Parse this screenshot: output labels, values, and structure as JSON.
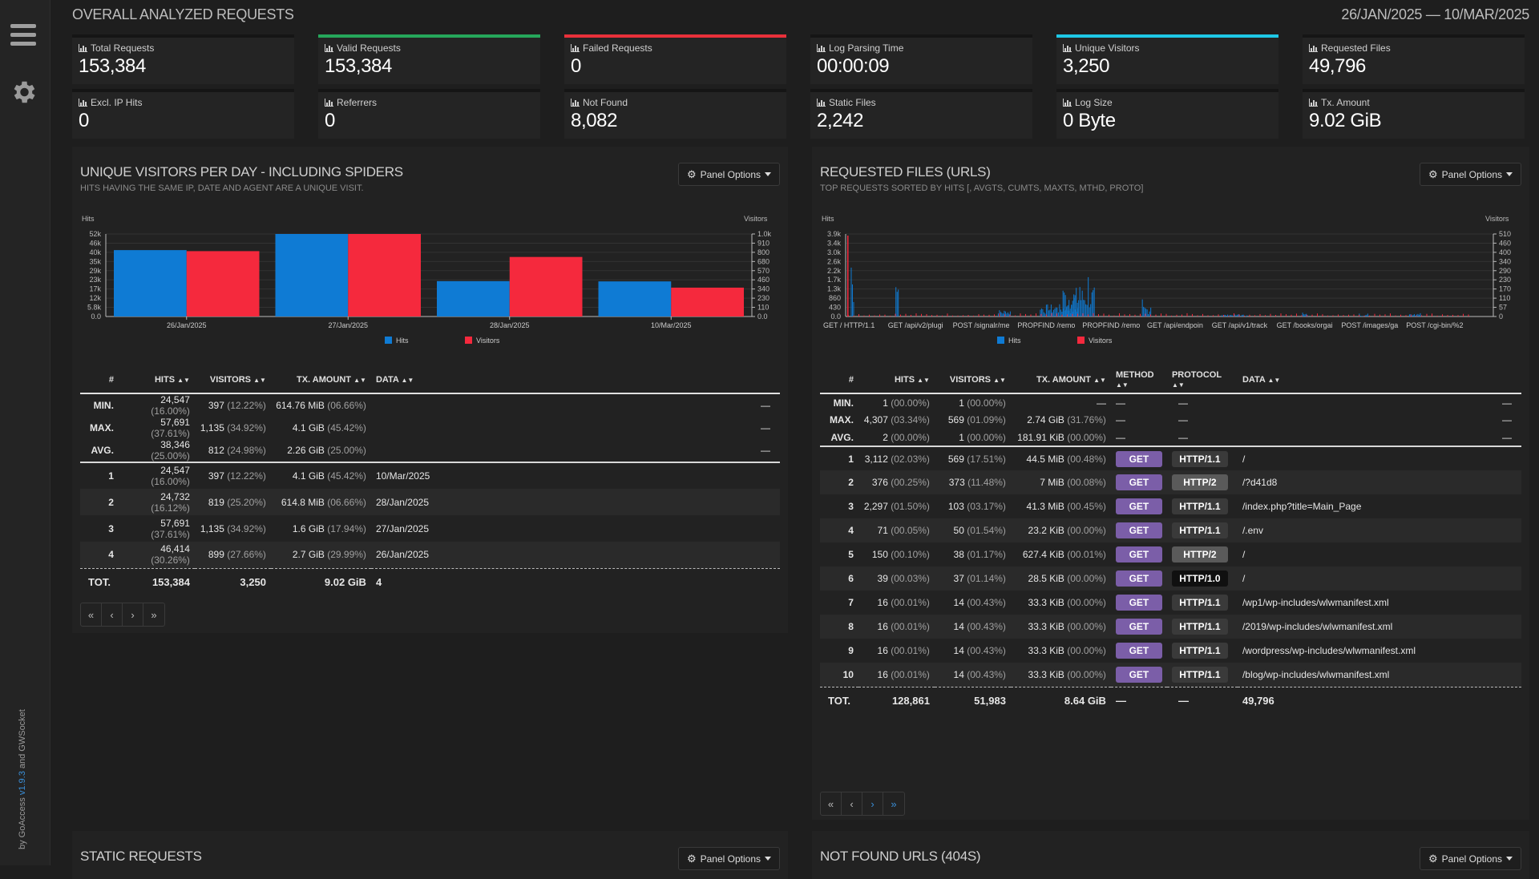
{
  "sidebar": {
    "menu_icon": "hamburger-menu-icon",
    "settings_icon": "gear-icon",
    "credit_by": "by GoAccess ",
    "credit_version": "v1.9.3",
    "credit_and": " and GWSocket"
  },
  "header": {
    "title": "OVERALL ANALYZED REQUESTS",
    "date_range": "26/JAN/2025 — 10/MAR/2025"
  },
  "cards": [
    {
      "label": "Total Requests",
      "value": "153,384",
      "accent": ""
    },
    {
      "label": "Valid Requests",
      "value": "153,384",
      "accent": "#26a65b"
    },
    {
      "label": "Failed Requests",
      "value": "0",
      "accent": "#e8303a"
    },
    {
      "label": "Log Parsing Time",
      "value": "00:00:09",
      "accent": ""
    },
    {
      "label": "Unique Visitors",
      "value": "3,250",
      "accent": "#1ec8e6"
    },
    {
      "label": "Requested Files",
      "value": "49,796",
      "accent": ""
    },
    {
      "label": "Excl. IP Hits",
      "value": "0",
      "accent": ""
    },
    {
      "label": "Referrers",
      "value": "0",
      "accent": ""
    },
    {
      "label": "Not Found",
      "value": "8,082",
      "accent": ""
    },
    {
      "label": "Static Files",
      "value": "2,242",
      "accent": ""
    },
    {
      "label": "Log Size",
      "value": "0 Byte",
      "accent": ""
    },
    {
      "label": "Tx. Amount",
      "value": "9.02 GiB",
      "accent": ""
    }
  ],
  "panel_options_label": "Panel Options",
  "visitors": {
    "title": "UNIQUE VISITORS PER DAY - INCLUDING SPIDERS",
    "subtitle": "HITS HAVING THE SAME IP, DATE AND AGENT ARE A UNIQUE VISIT.",
    "columns": [
      "#",
      "HITS",
      "VISITORS",
      "TX. AMOUNT",
      "DATA"
    ],
    "summary": [
      {
        "label": "MIN.",
        "hits": "24,547",
        "hits_pct": "(16.00%)",
        "visitors": "397",
        "visitors_pct": "(12.22%)",
        "tx": "614.76 MiB",
        "tx_pct": "(06.66%)",
        "data": "—"
      },
      {
        "label": "MAX.",
        "hits": "57,691",
        "hits_pct": "(37.61%)",
        "visitors": "1,135",
        "visitors_pct": "(34.92%)",
        "tx": "4.1 GiB",
        "tx_pct": "(45.42%)",
        "data": "—"
      },
      {
        "label": "AVG.",
        "hits": "38,346",
        "hits_pct": "(25.00%)",
        "visitors": "812",
        "visitors_pct": "(24.98%)",
        "tx": "2.26 GiB",
        "tx_pct": "(25.00%)",
        "data": "—"
      }
    ],
    "rows": [
      {
        "n": "1",
        "hits": "24,547",
        "hits_pct": "(16.00%)",
        "visitors": "397",
        "visitors_pct": "(12.22%)",
        "tx": "4.1 GiB",
        "tx_pct": "(45.42%)",
        "data": "10/Mar/2025"
      },
      {
        "n": "2",
        "hits": "24,732",
        "hits_pct": "(16.12%)",
        "visitors": "819",
        "visitors_pct": "(25.20%)",
        "tx": "614.8 MiB",
        "tx_pct": "(06.66%)",
        "data": "28/Jan/2025"
      },
      {
        "n": "3",
        "hits": "57,691",
        "hits_pct": "(37.61%)",
        "visitors": "1,135",
        "visitors_pct": "(34.92%)",
        "tx": "1.6 GiB",
        "tx_pct": "(17.94%)",
        "data": "27/Jan/2025"
      },
      {
        "n": "4",
        "hits": "46,414",
        "hits_pct": "(30.26%)",
        "visitors": "899",
        "visitors_pct": "(27.66%)",
        "tx": "2.7 GiB",
        "tx_pct": "(29.99%)",
        "data": "26/Jan/2025"
      }
    ],
    "total": {
      "label": "TOT.",
      "hits": "153,384",
      "visitors": "3,250",
      "tx": "9.02 GiB",
      "data": "4"
    }
  },
  "requests": {
    "title": "REQUESTED FILES (URLS)",
    "subtitle": "TOP REQUESTS SORTED BY HITS [, AVGTS, CUMTS, MAXTS, MTHD, PROTO]",
    "columns": [
      "#",
      "HITS",
      "VISITORS",
      "TX. AMOUNT",
      "METHOD",
      "PROTOCOL",
      "DATA"
    ],
    "summary": [
      {
        "label": "MIN.",
        "hits": "1",
        "hits_pct": "(00.00%)",
        "visitors": "1",
        "visitors_pct": "(00.00%)",
        "tx": "—",
        "tx_pct": "",
        "method": "—",
        "proto": "—",
        "data": "—"
      },
      {
        "label": "MAX.",
        "hits": "4,307",
        "hits_pct": "(03.34%)",
        "visitors": "569",
        "visitors_pct": "(01.09%)",
        "tx": "2.74 GiB",
        "tx_pct": "(31.76%)",
        "method": "—",
        "proto": "—",
        "data": "—"
      },
      {
        "label": "AVG.",
        "hits": "2",
        "hits_pct": "(00.00%)",
        "visitors": "1",
        "visitors_pct": "(00.00%)",
        "tx": "181.91 KiB",
        "tx_pct": "(00.00%)",
        "method": "—",
        "proto": "—",
        "data": "—"
      }
    ],
    "rows": [
      {
        "n": "1",
        "hits": "3,112",
        "hits_pct": "(02.03%)",
        "visitors": "569",
        "visitors_pct": "(17.51%)",
        "tx": "44.5 MiB",
        "tx_pct": "(00.48%)",
        "method": "GET",
        "proto": "HTTP/1.1",
        "data": "/"
      },
      {
        "n": "2",
        "hits": "376",
        "hits_pct": "(00.25%)",
        "visitors": "373",
        "visitors_pct": "(11.48%)",
        "tx": "7 MiB",
        "tx_pct": "(00.08%)",
        "method": "GET",
        "proto": "HTTP/2",
        "data": "/?d41d8"
      },
      {
        "n": "3",
        "hits": "2,297",
        "hits_pct": "(01.50%)",
        "visitors": "103",
        "visitors_pct": "(03.17%)",
        "tx": "41.3 MiB",
        "tx_pct": "(00.45%)",
        "method": "GET",
        "proto": "HTTP/1.1",
        "data": "/index.php?title=Main_Page"
      },
      {
        "n": "4",
        "hits": "71",
        "hits_pct": "(00.05%)",
        "visitors": "50",
        "visitors_pct": "(01.54%)",
        "tx": "23.2 KiB",
        "tx_pct": "(00.00%)",
        "method": "GET",
        "proto": "HTTP/1.1",
        "data": "/.env"
      },
      {
        "n": "5",
        "hits": "150",
        "hits_pct": "(00.10%)",
        "visitors": "38",
        "visitors_pct": "(01.17%)",
        "tx": "627.4 KiB",
        "tx_pct": "(00.01%)",
        "method": "GET",
        "proto": "HTTP/2",
        "data": "/"
      },
      {
        "n": "6",
        "hits": "39",
        "hits_pct": "(00.03%)",
        "visitors": "37",
        "visitors_pct": "(01.14%)",
        "tx": "28.5 KiB",
        "tx_pct": "(00.00%)",
        "method": "GET",
        "proto": "HTTP/1.0",
        "data": "/"
      },
      {
        "n": "7",
        "hits": "16",
        "hits_pct": "(00.01%)",
        "visitors": "14",
        "visitors_pct": "(00.43%)",
        "tx": "33.3 KiB",
        "tx_pct": "(00.00%)",
        "method": "GET",
        "proto": "HTTP/1.1",
        "data": "/wp1/wp-includes/wlwmanifest.xml"
      },
      {
        "n": "8",
        "hits": "16",
        "hits_pct": "(00.01%)",
        "visitors": "14",
        "visitors_pct": "(00.43%)",
        "tx": "33.3 KiB",
        "tx_pct": "(00.00%)",
        "method": "GET",
        "proto": "HTTP/1.1",
        "data": "/2019/wp-includes/wlwmanifest.xml"
      },
      {
        "n": "9",
        "hits": "16",
        "hits_pct": "(00.01%)",
        "visitors": "14",
        "visitors_pct": "(00.43%)",
        "tx": "33.3 KiB",
        "tx_pct": "(00.00%)",
        "method": "GET",
        "proto": "HTTP/1.1",
        "data": "/wordpress/wp-includes/wlwmanifest.xml"
      },
      {
        "n": "10",
        "hits": "16",
        "hits_pct": "(00.01%)",
        "visitors": "14",
        "visitors_pct": "(00.43%)",
        "tx": "33.3 KiB",
        "tx_pct": "(00.00%)",
        "method": "GET",
        "proto": "HTTP/1.1",
        "data": "/blog/wp-includes/wlwmanifest.xml"
      }
    ],
    "total": {
      "label": "TOT.",
      "hits": "128,861",
      "visitors": "51,983",
      "tx": "8.64 GiB",
      "method": "—",
      "proto": "—",
      "data": "49,796"
    }
  },
  "pager": {
    "first": "«",
    "prev": "‹",
    "next": "›",
    "last": "»"
  },
  "static": {
    "title": "STATIC REQUESTS"
  },
  "notfound": {
    "title": "NOT FOUND URLS (404S)"
  },
  "chart_data": [
    {
      "type": "bar",
      "title": "",
      "ylabel": "Hits",
      "y2label": "Visitors",
      "categories": [
        "26/Jan/2025",
        "27/Jan/2025",
        "28/Jan/2025",
        "10/Mar/2025"
      ],
      "series": [
        {
          "name": "Hits",
          "color": "#0f7bd4",
          "values": [
            46414,
            57691,
            24732,
            24547
          ]
        },
        {
          "name": "Visitors",
          "color": "#f5293d",
          "values": [
            899,
            1135,
            819,
            397
          ]
        }
      ],
      "yticks": [
        "0.0",
        "5.8k",
        "12k",
        "17k",
        "23k",
        "29k",
        "35k",
        "40k",
        "46k",
        "52k"
      ],
      "y2ticks": [
        "0.0",
        "110",
        "230",
        "340",
        "460",
        "570",
        "680",
        "800",
        "910",
        "1.0k"
      ],
      "ylim": [
        0,
        57691
      ],
      "y2lim": [
        0,
        1135
      ],
      "legend": "bottom"
    },
    {
      "type": "bar",
      "title": "",
      "ylabel": "Hits",
      "y2label": "Visitors",
      "categories": [
        "GET / HTTP/1.1",
        "GET /api/v2/plugi",
        "POST /signalr/me",
        "PROPFIND /remo",
        "PROPFIND /remo",
        "GET /api/endpoin",
        "GET /api/v1/track",
        "GET /books/orgai",
        "POST /images/ga",
        "POST /cgi-bin/%2"
      ],
      "series": [
        {
          "name": "Hits",
          "color": "#0f7bd4"
        },
        {
          "name": "Visitors",
          "color": "#f5293d"
        }
      ],
      "yticks": [
        "0.0",
        "430",
        "860",
        "1.3k",
        "1.7k",
        "2.2k",
        "2.6k",
        "3.0k",
        "3.4k",
        "3.9k"
      ],
      "y2ticks": [
        "0",
        "57",
        "110",
        "170",
        "230",
        "290",
        "340",
        "400",
        "460",
        "510"
      ],
      "ylim": [
        0,
        4307
      ],
      "y2lim": [
        0,
        569
      ],
      "legend": "bottom"
    }
  ]
}
